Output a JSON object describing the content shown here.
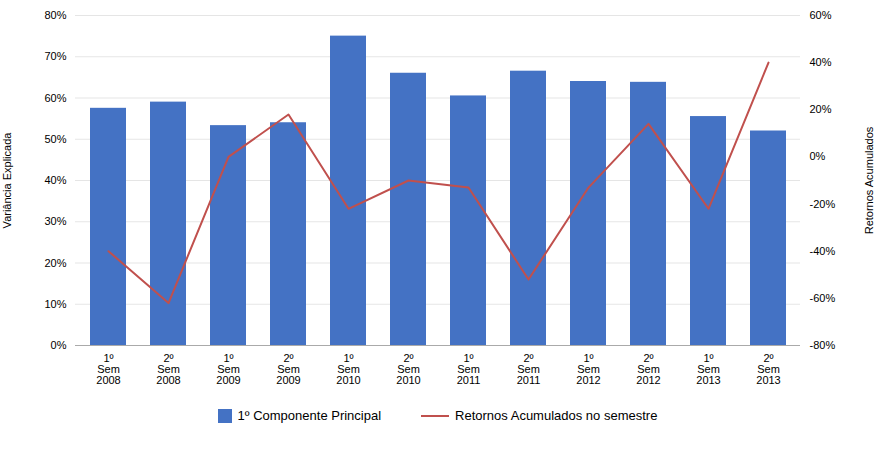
{
  "chart_data": {
    "type": "bar",
    "categories": [
      "1º\nSem\n2008",
      "2º\nSem\n2008",
      "1º\nSem\n2009",
      "2º\nSem\n2009",
      "1º\nSem\n2010",
      "2º\nSem\n2010",
      "1º\nSem\n2011",
      "2º\nSem\n2011",
      "1º\nSem\n2012",
      "2º\nSem\n2012",
      "1º\nSem\n2013",
      "2º\nSem\n2013"
    ],
    "series": [
      {
        "name": "1º Componente Principal",
        "type": "bar",
        "color": "#4472C4",
        "values": [
          0.575,
          0.59,
          0.533,
          0.54,
          0.75,
          0.66,
          0.605,
          0.665,
          0.64,
          0.638,
          0.555,
          0.52
        ]
      },
      {
        "name": "Retornos Acumulados no semestre",
        "type": "line",
        "axis": "y2",
        "color": "#C0504D",
        "values": [
          -0.4,
          -0.62,
          0.0,
          0.18,
          -0.22,
          -0.1,
          -0.13,
          -0.52,
          -0.13,
          0.14,
          -0.22,
          0.4
        ]
      }
    ],
    "ylabel": "Variância Explicada",
    "y2label": "Retornos Acumulados",
    "ylim": [
      0.0,
      0.8
    ],
    "yticks": [
      {
        "value": 0.0,
        "label": "0%"
      },
      {
        "value": 0.1,
        "label": "10%"
      },
      {
        "value": 0.2,
        "label": "20%"
      },
      {
        "value": 0.3,
        "label": "30%"
      },
      {
        "value": 0.4,
        "label": "40%"
      },
      {
        "value": 0.5,
        "label": "50%"
      },
      {
        "value": 0.6,
        "label": "60%"
      },
      {
        "value": 0.7,
        "label": "70%"
      },
      {
        "value": 0.8,
        "label": "80%"
      }
    ],
    "y2lim": [
      -0.8,
      0.6
    ],
    "y2ticks": [
      {
        "value": -0.8,
        "label": "-80%"
      },
      {
        "value": -0.6,
        "label": "-60%"
      },
      {
        "value": -0.4,
        "label": "-40%"
      },
      {
        "value": -0.2,
        "label": "-20%"
      },
      {
        "value": 0.0,
        "label": "0%"
      },
      {
        "value": 0.2,
        "label": "20%"
      },
      {
        "value": 0.4,
        "label": "40%"
      },
      {
        "value": 0.6,
        "label": "60%"
      }
    ],
    "grid": true,
    "legend": "bottom"
  }
}
